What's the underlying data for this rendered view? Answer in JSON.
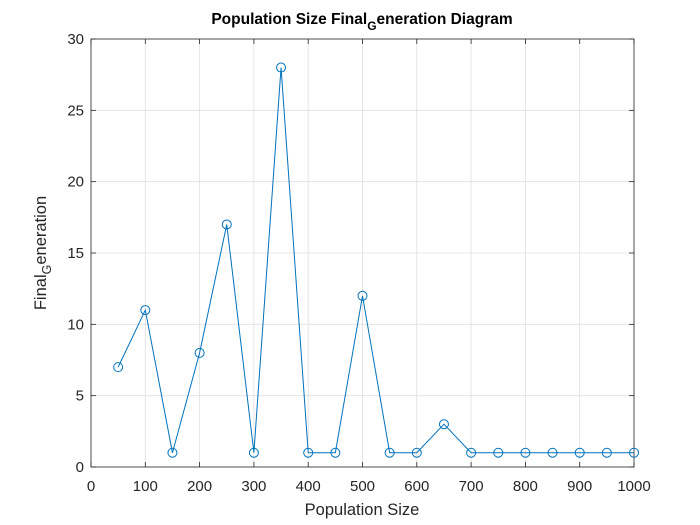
{
  "chart_data": {
    "type": "line",
    "title_parts": {
      "before": "Population Size Final",
      "subscript": "G",
      "after": "eneration Diagram"
    },
    "xlabel": "Population Size",
    "ylabel_parts": {
      "before": "Final",
      "subscript": "G",
      "after": "eneration"
    },
    "xlim": [
      0,
      1000
    ],
    "ylim": [
      0,
      30
    ],
    "xticks": [
      0,
      100,
      200,
      300,
      400,
      500,
      600,
      700,
      800,
      900,
      1000
    ],
    "yticks": [
      0,
      5,
      10,
      15,
      20,
      25,
      30
    ],
    "grid": true,
    "marker": "circle",
    "series": [
      {
        "x": [
          50,
          100,
          150,
          200,
          250,
          300,
          350,
          400,
          450,
          500,
          550,
          600,
          650,
          700,
          750,
          800,
          850,
          900,
          950,
          1000
        ],
        "values": [
          7,
          11,
          1,
          8,
          17,
          1,
          28,
          1,
          1,
          12,
          1,
          1,
          3,
          1,
          1,
          1,
          1,
          1,
          1,
          1
        ],
        "color": "#0072BD"
      }
    ]
  }
}
